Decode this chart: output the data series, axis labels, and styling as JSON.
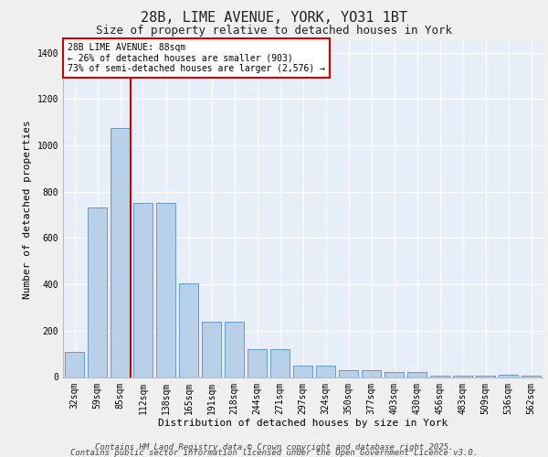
{
  "title_line1": "28B, LIME AVENUE, YORK, YO31 1BT",
  "title_line2": "Size of property relative to detached houses in York",
  "xlabel": "Distribution of detached houses by size in York",
  "ylabel": "Number of detached properties",
  "categories": [
    "32sqm",
    "59sqm",
    "85sqm",
    "112sqm",
    "138sqm",
    "165sqm",
    "191sqm",
    "218sqm",
    "244sqm",
    "271sqm",
    "297sqm",
    "324sqm",
    "350sqm",
    "377sqm",
    "403sqm",
    "430sqm",
    "456sqm",
    "483sqm",
    "509sqm",
    "536sqm",
    "562sqm"
  ],
  "values": [
    110,
    730,
    1075,
    750,
    750,
    405,
    237,
    237,
    120,
    120,
    50,
    50,
    28,
    28,
    20,
    20,
    5,
    5,
    5,
    10,
    5
  ],
  "bar_color": "#b8d0e8",
  "bar_edge_color": "#6699cc",
  "background_color": "#e8eef8",
  "grid_color": "#ffffff",
  "vline_color": "#cc0000",
  "annotation_text": "28B LIME AVENUE: 88sqm\n← 26% of detached houses are smaller (903)\n73% of semi-detached houses are larger (2,576) →",
  "annotation_box_facecolor": "#ffffff",
  "annotation_box_edgecolor": "#cc0000",
  "ylim": [
    0,
    1450
  ],
  "yticks": [
    0,
    200,
    400,
    600,
    800,
    1000,
    1200,
    1400
  ],
  "footer_line1": "Contains HM Land Registry data © Crown copyright and database right 2025.",
  "footer_line2": "Contains public sector information licensed under the Open Government Licence v3.0.",
  "title_fontsize": 11,
  "subtitle_fontsize": 9,
  "axis_label_fontsize": 8,
  "tick_fontsize": 7,
  "annotation_fontsize": 7,
  "footer_fontsize": 6.5
}
